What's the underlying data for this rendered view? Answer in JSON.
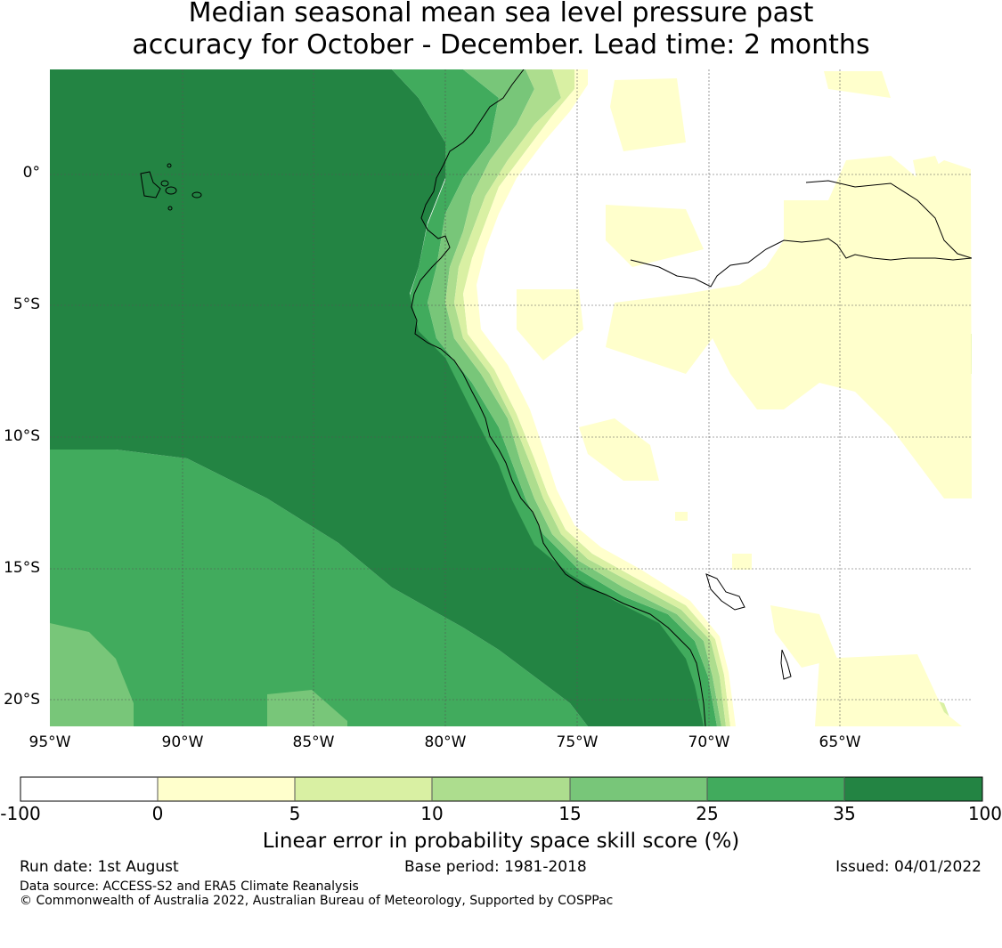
{
  "title": {
    "line1": "Median seasonal mean sea level pressure past",
    "line2": "accuracy for October - December. Lead time: 2 months"
  },
  "map": {
    "lat_labels": [
      "0°",
      "5°S",
      "10°S",
      "15°S",
      "20°S"
    ],
    "lon_labels": [
      "95°W",
      "90°W",
      "85°W",
      "80°W",
      "75°W",
      "70°W",
      "65°W"
    ]
  },
  "colorbar": {
    "tick_labels": [
      "-100",
      "0",
      "5",
      "10",
      "15",
      "25",
      "35",
      "100"
    ],
    "colors": [
      "#ffffff",
      "#ffffcc",
      "#d9f0a3",
      "#addd8e",
      "#78c679",
      "#41ab5d",
      "#238443"
    ],
    "label": "Linear error in probability space skill score (%)"
  },
  "footer": {
    "run_date": "Run date: 1st August",
    "base_period": "Base period: 1981-2018",
    "issued": "Issued: 04/01/2022",
    "data_source": "Data source: ACCESS-S2 and ERA5 Climate Reanalysis",
    "copyright": "© Commonwealth of Australia 2022, Australian Bureau of Meteorology, Supported by COSPPac"
  }
}
